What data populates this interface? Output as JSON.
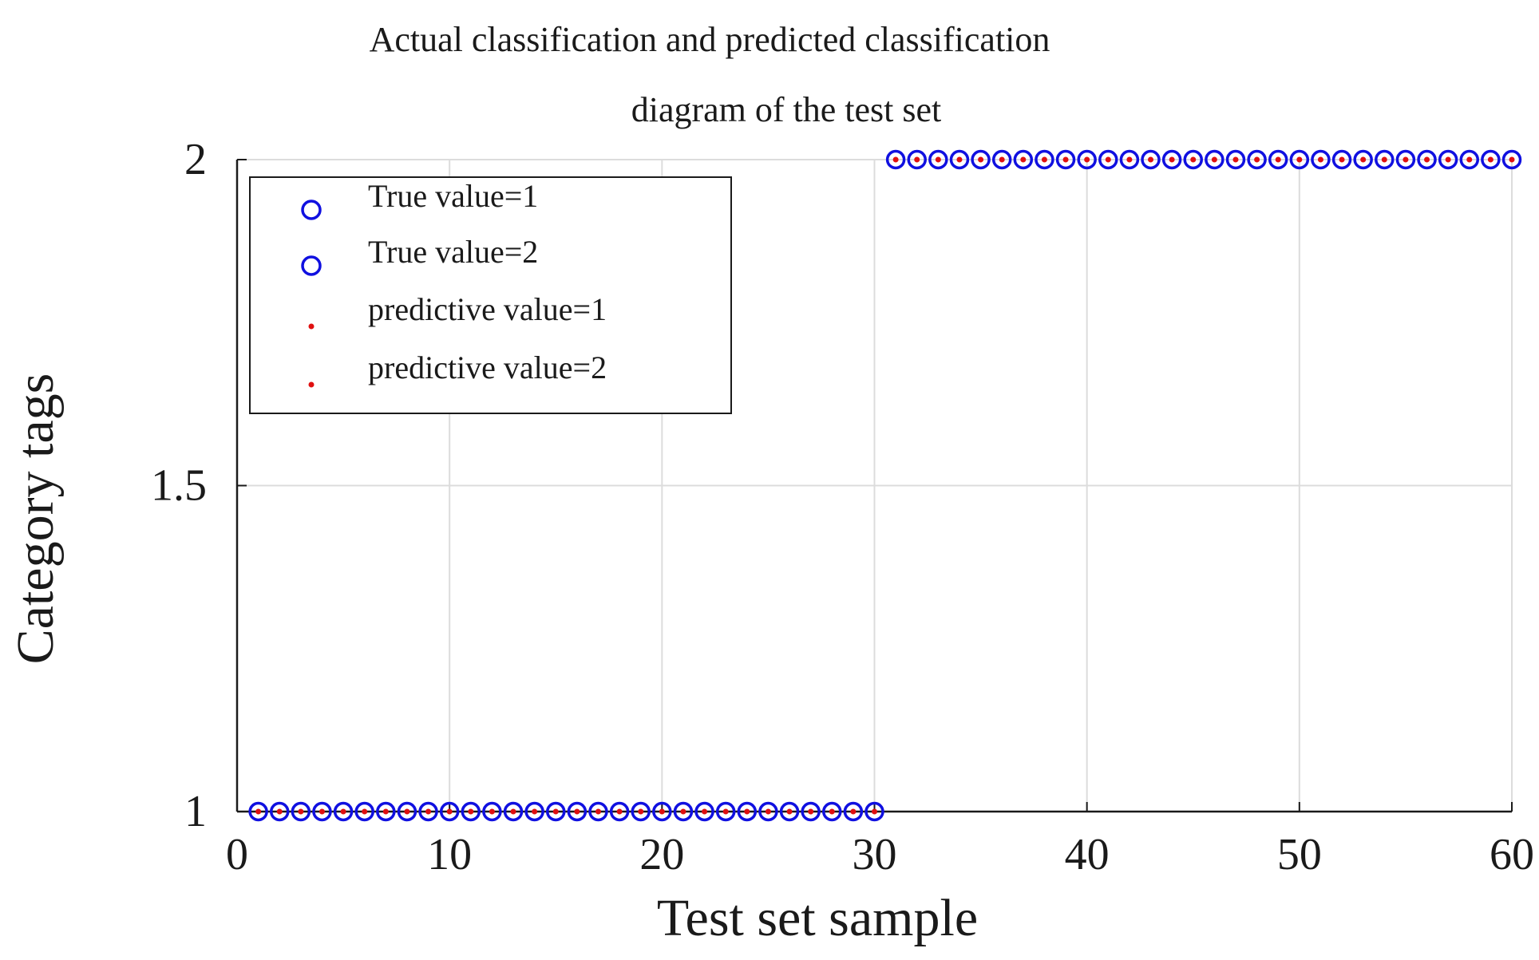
{
  "chart_data": {
    "type": "scatter",
    "title_lines": [
      "Actual classification and predicted classification",
      "diagram of the test set"
    ],
    "xlabel": "Test set sample",
    "ylabel": "Category tags",
    "xlim": [
      0,
      60
    ],
    "ylim": [
      1,
      2
    ],
    "xticks": [
      0,
      10,
      20,
      30,
      40,
      50,
      60
    ],
    "xtick_labels": [
      "0",
      "10",
      "20",
      "30",
      "40",
      "50",
      "60"
    ],
    "yticks": [
      1,
      1.5,
      2
    ],
    "ytick_labels": [
      "1",
      "1.5",
      "2"
    ],
    "grid": true,
    "legend_position": "top-left",
    "series": [
      {
        "name": "True value=1",
        "marker": "circle",
        "color": "#1010e0",
        "x": [
          1,
          2,
          3,
          4,
          5,
          6,
          7,
          8,
          9,
          10,
          11,
          12,
          13,
          14,
          15,
          16,
          17,
          18,
          19,
          20,
          21,
          22,
          23,
          24,
          25,
          26,
          27,
          28,
          29,
          30
        ],
        "y": [
          1,
          1,
          1,
          1,
          1,
          1,
          1,
          1,
          1,
          1,
          1,
          1,
          1,
          1,
          1,
          1,
          1,
          1,
          1,
          1,
          1,
          1,
          1,
          1,
          1,
          1,
          1,
          1,
          1,
          1
        ]
      },
      {
        "name": "True value=2",
        "marker": "circle",
        "color": "#1010e0",
        "x": [
          31,
          32,
          33,
          34,
          35,
          36,
          37,
          38,
          39,
          40,
          41,
          42,
          43,
          44,
          45,
          46,
          47,
          48,
          49,
          50,
          51,
          52,
          53,
          54,
          55,
          56,
          57,
          58,
          59,
          60
        ],
        "y": [
          2,
          2,
          2,
          2,
          2,
          2,
          2,
          2,
          2,
          2,
          2,
          2,
          2,
          2,
          2,
          2,
          2,
          2,
          2,
          2,
          2,
          2,
          2,
          2,
          2,
          2,
          2,
          2,
          2,
          2
        ]
      },
      {
        "name": "predictive value=1",
        "marker": "dot",
        "color": "#e01010",
        "x": [
          1,
          2,
          3,
          4,
          5,
          6,
          7,
          8,
          9,
          10,
          11,
          12,
          13,
          14,
          15,
          16,
          17,
          18,
          19,
          20,
          21,
          22,
          23,
          24,
          25,
          26,
          27,
          28,
          29,
          30
        ],
        "y": [
          1,
          1,
          1,
          1,
          1,
          1,
          1,
          1,
          1,
          1,
          1,
          1,
          1,
          1,
          1,
          1,
          1,
          1,
          1,
          1,
          1,
          1,
          1,
          1,
          1,
          1,
          1,
          1,
          1,
          1
        ]
      },
      {
        "name": "predictive value=2",
        "marker": "dot",
        "color": "#e01010",
        "x": [
          31,
          32,
          33,
          34,
          35,
          36,
          37,
          38,
          39,
          40,
          41,
          42,
          43,
          44,
          45,
          46,
          47,
          48,
          49,
          50,
          51,
          52,
          53,
          54,
          55,
          56,
          57,
          58,
          59,
          60
        ],
        "y": [
          2,
          2,
          2,
          2,
          2,
          2,
          2,
          2,
          2,
          2,
          2,
          2,
          2,
          2,
          2,
          2,
          2,
          2,
          2,
          2,
          2,
          2,
          2,
          2,
          2,
          2,
          2,
          2,
          2,
          2
        ]
      }
    ]
  }
}
